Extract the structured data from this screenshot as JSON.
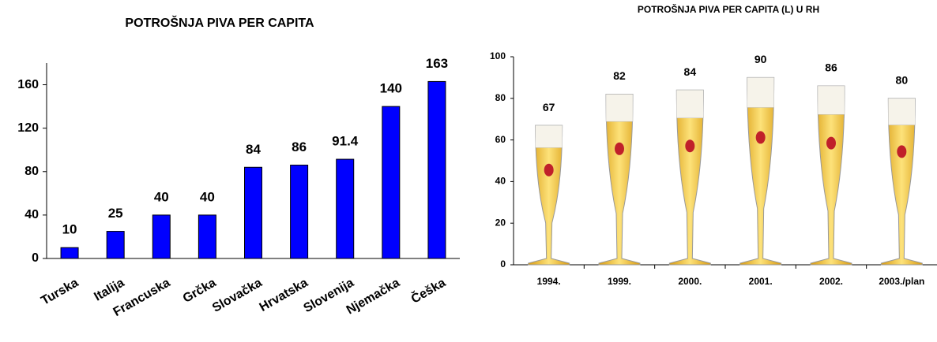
{
  "chart_data": [
    {
      "type": "bar",
      "title": "POTROŠNJA PIVA PER CAPITA",
      "categories": [
        "Turska",
        "Italija",
        "Francuska",
        "Grčka",
        "Slovačka",
        "Hrvatska",
        "Slovenija",
        "Njemačka",
        "Češka"
      ],
      "values": [
        10,
        25,
        40,
        40,
        84,
        86,
        91.4,
        140,
        163
      ],
      "color": "#0000ff",
      "ylim": [
        0,
        180
      ],
      "yticks": [
        0,
        40,
        80,
        120,
        160
      ]
    },
    {
      "type": "pictograph",
      "title": "POTROŠNJA PIVA PER CAPITA (L) U RH",
      "categories": [
        "1994.",
        "1999.",
        "2000.",
        "2001.",
        "2002.",
        "2003./plan"
      ],
      "values": [
        67,
        82,
        84,
        90,
        86,
        80
      ],
      "color": "#f2c230",
      "ylim": [
        0,
        100
      ],
      "yticks": [
        0,
        20,
        40,
        60,
        80,
        100
      ]
    }
  ]
}
